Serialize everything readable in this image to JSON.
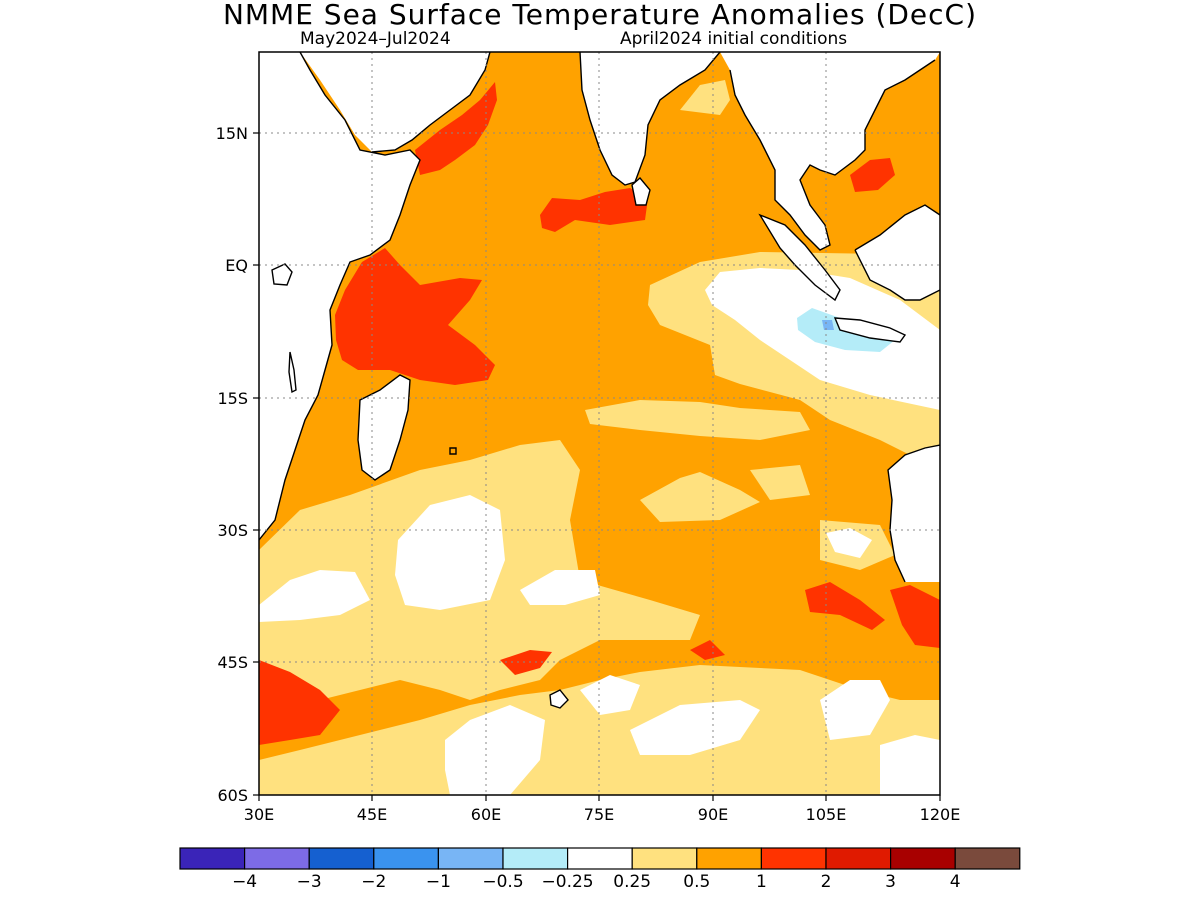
{
  "title": "NMME Sea Surface Temperature Anomalies (DecC)",
  "subtitle_period": "May2024–Jul2024",
  "subtitle_ic": "April2024 initial conditions",
  "map": {
    "lon_range": [
      30,
      120
    ],
    "lat_range": [
      -60,
      24
    ],
    "lon_ticks": [
      "30E",
      "45E",
      "60E",
      "75E",
      "90E",
      "105E",
      "120E"
    ],
    "lat_ticks": [
      "15N",
      "EQ",
      "15S",
      "30S",
      "45S",
      "60S"
    ],
    "region": "Indian Ocean",
    "land_fill": "#ffffff",
    "coastline_color": "#000000",
    "gridlines": "dotted"
  },
  "colorbar": {
    "colors": [
      "#3a24b8",
      "#7d6be6",
      "#1560d0",
      "#3a93ef",
      "#78b5f5",
      "#b4ecf8",
      "#ffffff",
      "#ffe17f",
      "#ffa200",
      "#ff3300",
      "#e01a00",
      "#a80000",
      "#7a4a3c"
    ],
    "labels": [
      "−4",
      "−3",
      "−2",
      "−1",
      "−0.5",
      "−0.25",
      "0.25",
      "0.5",
      "1",
      "2",
      "3",
      "4"
    ]
  }
}
